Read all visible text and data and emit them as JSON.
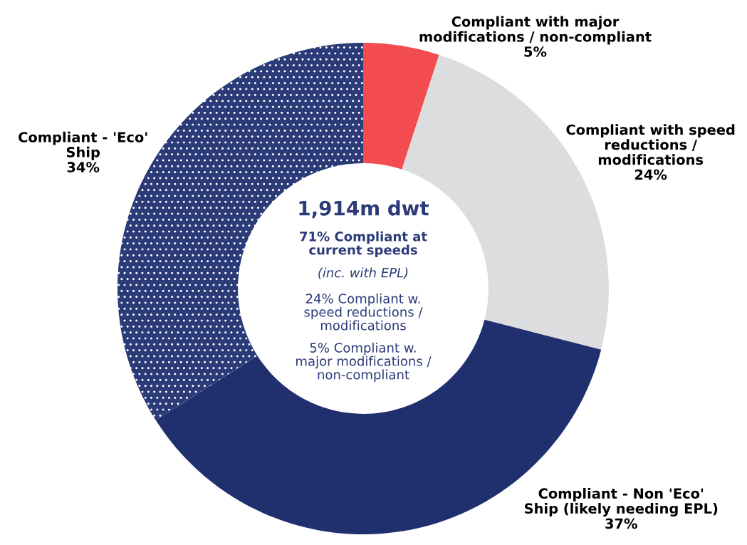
{
  "chart_data": {
    "type": "donut",
    "categories": [
      "Compliant with major\nmodifications / non-compliant",
      "Compliant with speed\nreductions /\nmodifications",
      "Compliant - Non 'Eco'\nShip (likely needing EPL)",
      "Compliant - 'Eco'\nShip"
    ],
    "values": [
      5,
      24,
      37,
      34
    ],
    "value_labels": [
      "5%",
      "24%",
      "37%",
      "34%"
    ],
    "colors": [
      "#f24c4f",
      "#dcdddf",
      "#20306f",
      "#2b3b78"
    ],
    "annotations": [
      "1,914m dwt",
      "71% Compliant at\ncurrent speeds",
      "(inc. with EPL)",
      "24% Compliant w.\nspeed reductions /\nmodifications",
      "5% Compliant w.\nmajor modifications /\nnon-compliant"
    ]
  }
}
